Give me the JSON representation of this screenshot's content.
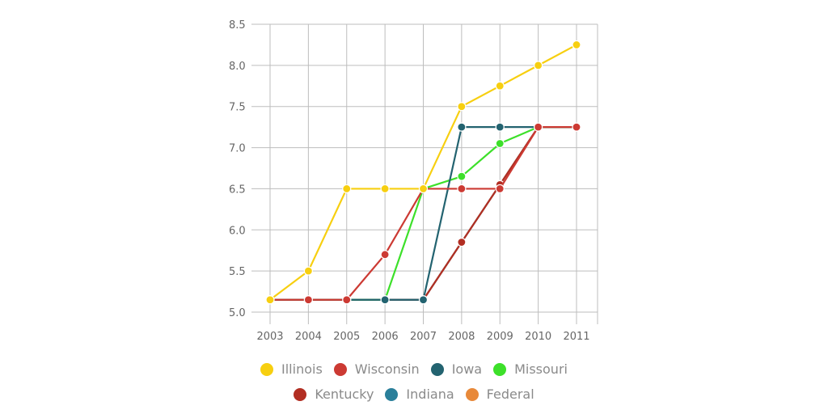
{
  "chart_data": {
    "type": "line",
    "title": "",
    "xlabel": "",
    "ylabel": "",
    "x": [
      "2003",
      "2004",
      "2005",
      "2006",
      "2007",
      "2008",
      "2009",
      "2010",
      "2011"
    ],
    "ylim": [
      5.0,
      8.5
    ],
    "y_ticks": [
      "5.0",
      "5.5",
      "6.0",
      "6.5",
      "7.0",
      "7.5",
      "8.0",
      "8.5"
    ],
    "grid": true,
    "legend_position": "bottom",
    "series": [
      {
        "name": "Federal",
        "color": "#e8893a",
        "values": [
          5.15,
          5.15,
          5.15,
          5.15,
          5.15,
          5.85,
          6.55,
          7.25,
          7.25
        ]
      },
      {
        "name": "Indiana",
        "color": "#2a7f9a",
        "values": [
          5.15,
          5.15,
          5.15,
          5.15,
          5.15,
          5.85,
          6.55,
          7.25,
          7.25
        ]
      },
      {
        "name": "Kentucky",
        "color": "#b22e22",
        "values": [
          5.15,
          5.15,
          5.15,
          5.15,
          5.15,
          5.85,
          6.55,
          7.25,
          7.25
        ]
      },
      {
        "name": "Missouri",
        "color": "#3de02a",
        "values": [
          5.15,
          5.15,
          5.15,
          5.15,
          6.5,
          6.65,
          7.05,
          7.25,
          7.25
        ]
      },
      {
        "name": "Iowa",
        "color": "#236370",
        "values": [
          5.15,
          5.15,
          5.15,
          5.15,
          5.15,
          7.25,
          7.25,
          7.25,
          7.25
        ]
      },
      {
        "name": "Wisconsin",
        "color": "#cc3a33",
        "values": [
          5.15,
          5.15,
          5.15,
          5.7,
          6.5,
          6.5,
          6.5,
          7.25,
          7.25
        ]
      },
      {
        "name": "Illinois",
        "color": "#f7cf10",
        "values": [
          5.15,
          5.5,
          6.5,
          6.5,
          6.5,
          7.5,
          7.75,
          8.0,
          8.25
        ]
      }
    ]
  },
  "legend": {
    "row1": [
      {
        "label": "Illinois",
        "color": "#f7cf10"
      },
      {
        "label": "Wisconsin",
        "color": "#cc3a33"
      },
      {
        "label": "Iowa",
        "color": "#236370"
      },
      {
        "label": "Missouri",
        "color": "#3de02a"
      }
    ],
    "row2": [
      {
        "label": "Kentucky",
        "color": "#b22e22"
      },
      {
        "label": "Indiana",
        "color": "#2a7f9a"
      },
      {
        "label": "Federal",
        "color": "#e8893a"
      }
    ]
  }
}
